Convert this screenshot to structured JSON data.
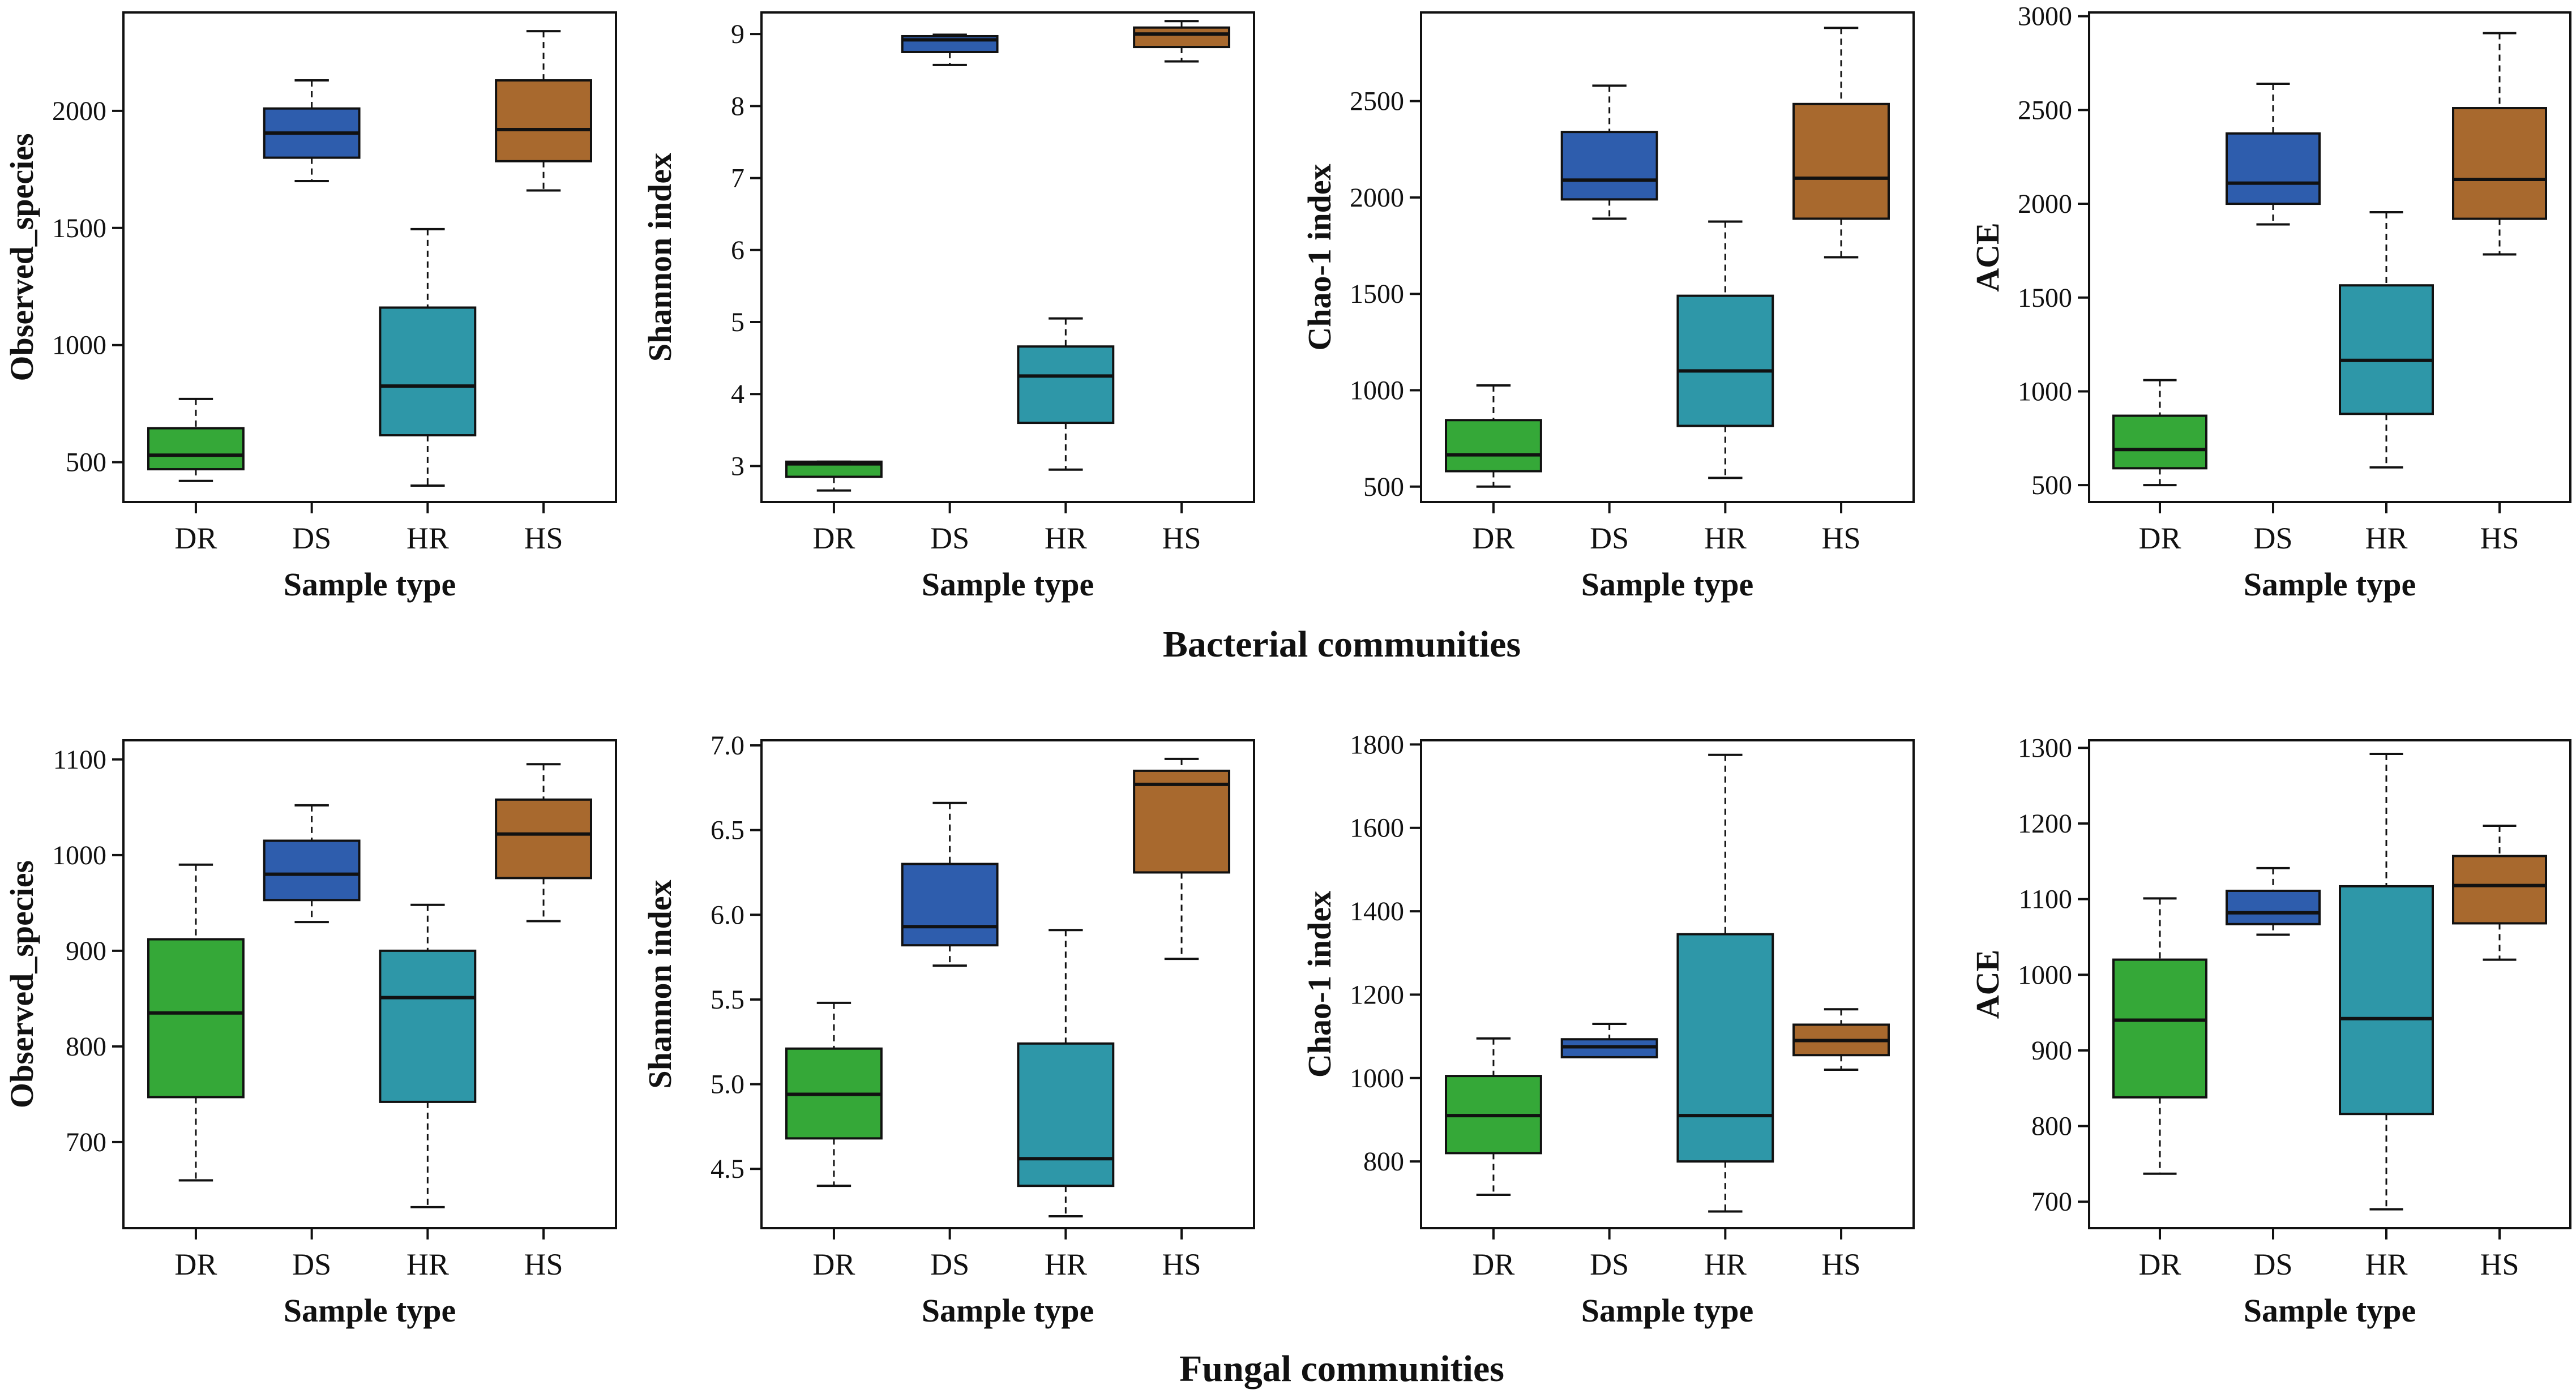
{
  "sections": {
    "bacterial_title": "Bacterial communities",
    "fungal_title": "Fungal communities"
  },
  "colors": {
    "DR": "#35a838",
    "DS": "#2e5dad",
    "HR": "#2e97a8",
    "HS": "#a8692e"
  },
  "chart_data": [
    {
      "type": "box",
      "section": "Bacterial communities",
      "xlabel": "Sample type",
      "ylabel": "Observed_species",
      "categories": [
        "DR",
        "DS",
        "HR",
        "HS"
      ],
      "ylim": [
        330,
        2420
      ],
      "yticks": [
        500,
        1000,
        1500,
        2000
      ],
      "boxes": [
        {
          "min": 420,
          "q1": 470,
          "median": 530,
          "q3": 645,
          "max": 770
        },
        {
          "min": 1700,
          "q1": 1800,
          "median": 1905,
          "q3": 2010,
          "max": 2130
        },
        {
          "min": 400,
          "q1": 615,
          "median": 825,
          "q3": 1160,
          "max": 1495
        },
        {
          "min": 1660,
          "q1": 1785,
          "median": 1920,
          "q3": 2130,
          "max": 2340
        }
      ]
    },
    {
      "type": "box",
      "section": "Bacterial communities",
      "xlabel": "Sample type",
      "ylabel": "Shannon index",
      "categories": [
        "DR",
        "DS",
        "HR",
        "HS"
      ],
      "ylim": [
        2.5,
        9.3
      ],
      "yticks": [
        3,
        4,
        5,
        6,
        7,
        8,
        9
      ],
      "boxes": [
        {
          "min": 2.66,
          "q1": 2.85,
          "median": 3.03,
          "q3": 3.06,
          "max": 3.06
        },
        {
          "min": 8.57,
          "q1": 8.75,
          "median": 8.92,
          "q3": 8.97,
          "max": 8.99
        },
        {
          "min": 2.95,
          "q1": 3.6,
          "median": 4.25,
          "q3": 4.66,
          "max": 5.05
        },
        {
          "min": 8.62,
          "q1": 8.82,
          "median": 9.0,
          "q3": 9.09,
          "max": 9.18
        }
      ]
    },
    {
      "type": "box",
      "section": "Bacterial communities",
      "xlabel": "Sample type",
      "ylabel": "Chao-1 index",
      "categories": [
        "DR",
        "DS",
        "HR",
        "HS"
      ],
      "ylim": [
        420,
        2960
      ],
      "yticks": [
        500,
        1000,
        1500,
        2000,
        2500
      ],
      "boxes": [
        {
          "min": 500,
          "q1": 580,
          "median": 665,
          "q3": 845,
          "max": 1025
        },
        {
          "min": 1890,
          "q1": 1990,
          "median": 2090,
          "q3": 2340,
          "max": 2580
        },
        {
          "min": 545,
          "q1": 815,
          "median": 1100,
          "q3": 1490,
          "max": 1875
        },
        {
          "min": 1690,
          "q1": 1890,
          "median": 2100,
          "q3": 2485,
          "max": 2880
        }
      ]
    },
    {
      "type": "box",
      "section": "Bacterial communities",
      "xlabel": "Sample type",
      "ylabel": "ACE",
      "categories": [
        "DR",
        "DS",
        "HR",
        "HS"
      ],
      "ylim": [
        410,
        3020
      ],
      "yticks": [
        500,
        1000,
        1500,
        2000,
        2500,
        3000
      ],
      "boxes": [
        {
          "min": 500,
          "q1": 590,
          "median": 690,
          "q3": 870,
          "max": 1060
        },
        {
          "min": 1890,
          "q1": 2000,
          "median": 2110,
          "q3": 2375,
          "max": 2640
        },
        {
          "min": 595,
          "q1": 880,
          "median": 1165,
          "q3": 1565,
          "max": 1955
        },
        {
          "min": 1730,
          "q1": 1920,
          "median": 2130,
          "q3": 2510,
          "max": 2910
        }
      ]
    },
    {
      "type": "box",
      "section": "Fungal communities",
      "xlabel": "Sample type",
      "ylabel": "Observed_species",
      "categories": [
        "DR",
        "DS",
        "HR",
        "HS"
      ],
      "ylim": [
        610,
        1120
      ],
      "yticks": [
        700,
        800,
        900,
        1000,
        1100
      ],
      "boxes": [
        {
          "min": 660,
          "q1": 747,
          "median": 835,
          "q3": 912,
          "max": 990
        },
        {
          "min": 930,
          "q1": 953,
          "median": 980,
          "q3": 1015,
          "max": 1052
        },
        {
          "min": 632,
          "q1": 742,
          "median": 851,
          "q3": 900,
          "max": 948
        },
        {
          "min": 931,
          "q1": 976,
          "median": 1022,
          "q3": 1058,
          "max": 1095
        }
      ]
    },
    {
      "type": "box",
      "section": "Fungal communities",
      "xlabel": "Sample type",
      "ylabel": "Shannon index",
      "categories": [
        "DR",
        "DS",
        "HR",
        "HS"
      ],
      "ylim": [
        4.15,
        7.03
      ],
      "yticks": [
        4.5,
        5.0,
        5.5,
        6.0,
        6.5,
        7.0
      ],
      "ytick_labels": [
        "4.5",
        "5.0",
        "5.5",
        "6.0",
        "6.5",
        "7.0"
      ],
      "boxes": [
        {
          "min": 4.4,
          "q1": 4.68,
          "median": 4.94,
          "q3": 5.21,
          "max": 5.48
        },
        {
          "min": 5.7,
          "q1": 5.82,
          "median": 5.93,
          "q3": 6.3,
          "max": 6.66
        },
        {
          "min": 4.22,
          "q1": 4.4,
          "median": 4.56,
          "q3": 5.24,
          "max": 5.91
        },
        {
          "min": 5.74,
          "q1": 6.25,
          "median": 6.77,
          "q3": 6.85,
          "max": 6.92
        }
      ]
    },
    {
      "type": "box",
      "section": "Fungal communities",
      "xlabel": "Sample type",
      "ylabel": "Chao-1 index",
      "categories": [
        "DR",
        "DS",
        "HR",
        "HS"
      ],
      "ylim": [
        640,
        1810
      ],
      "yticks": [
        800,
        1000,
        1200,
        1400,
        1600,
        1800
      ],
      "boxes": [
        {
          "min": 720,
          "q1": 820,
          "median": 910,
          "q3": 1005,
          "max": 1095
        },
        {
          "min": 1050,
          "q1": 1050,
          "median": 1075,
          "q3": 1093,
          "max": 1130
        },
        {
          "min": 680,
          "q1": 800,
          "median": 910,
          "q3": 1345,
          "max": 1775
        },
        {
          "min": 1020,
          "q1": 1055,
          "median": 1090,
          "q3": 1128,
          "max": 1165
        }
      ]
    },
    {
      "type": "box",
      "section": "Fungal communities",
      "xlabel": "Sample type",
      "ylabel": "ACE",
      "categories": [
        "DR",
        "DS",
        "HR",
        "HS"
      ],
      "ylim": [
        665,
        1310
      ],
      "yticks": [
        700,
        800,
        900,
        1000,
        1100,
        1200,
        1300
      ],
      "boxes": [
        {
          "min": 737,
          "q1": 838,
          "median": 940,
          "q3": 1020,
          "max": 1101
        },
        {
          "min": 1053,
          "q1": 1067,
          "median": 1082,
          "q3": 1111,
          "max": 1141
        },
        {
          "min": 690,
          "q1": 816,
          "median": 942,
          "q3": 1117,
          "max": 1292
        },
        {
          "min": 1020,
          "q1": 1068,
          "median": 1118,
          "q3": 1157,
          "max": 1197
        }
      ]
    }
  ]
}
